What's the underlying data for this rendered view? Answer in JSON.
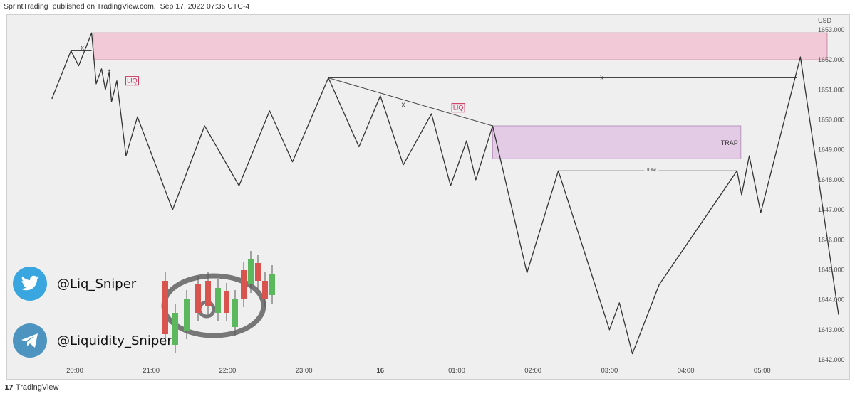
{
  "header": {
    "author": "SprintTrading",
    "published_on": "published on TradingView.com,",
    "date": "Sep 17, 2022 07:35 UTC-4"
  },
  "footer": {
    "logo_text": "TradingView",
    "logo_mark": "17"
  },
  "social": {
    "twitter_handle": "@Liq_Sniper",
    "telegram_handle": "@Liquidity_Sniper",
    "twitter_icon": "twitter-bird-icon",
    "telegram_icon": "telegram-plane-icon"
  },
  "colors": {
    "line": "#333333",
    "pink_zone": "#f2c9d6",
    "purple_zone": "#e3cbe6",
    "liq_label": "#c8234f"
  },
  "chart_data": {
    "type": "line",
    "currency": "USD",
    "ylim": [
      1642,
      1653
    ],
    "yticks": [
      "1642.000",
      "1643.000",
      "1644.000",
      "1645.000",
      "1646.000",
      "1647.000",
      "1648.000",
      "1649.000",
      "1650.000",
      "1651.000",
      "1652.000",
      "1653.000"
    ],
    "xticks": [
      "20:00",
      "21:00",
      "22:00",
      "23:00",
      "16",
      "01:00",
      "02:00",
      "03:00",
      "04:00",
      "05:00"
    ],
    "xtick_hours": [
      20,
      21,
      22,
      23,
      24,
      25,
      26,
      27,
      28,
      29
    ],
    "series": [
      {
        "points": [
          [
            19.7,
            1650.7
          ],
          [
            19.95,
            1652.3
          ],
          [
            20.05,
            1651.8
          ],
          [
            20.22,
            1652.9
          ],
          [
            20.28,
            1651.2
          ],
          [
            20.35,
            1651.7
          ],
          [
            20.4,
            1651.0
          ],
          [
            20.45,
            1651.6
          ],
          [
            20.48,
            1650.6
          ],
          [
            20.55,
            1651.3
          ],
          [
            20.67,
            1648.8
          ],
          [
            20.82,
            1650.1
          ],
          [
            21.28,
            1647.0
          ],
          [
            21.7,
            1649.8
          ],
          [
            22.15,
            1647.8
          ],
          [
            22.55,
            1650.3
          ],
          [
            22.85,
            1648.6
          ],
          [
            23.32,
            1651.4
          ],
          [
            23.72,
            1649.1
          ],
          [
            24.0,
            1650.8
          ],
          [
            24.3,
            1648.5
          ],
          [
            24.67,
            1650.2
          ],
          [
            24.92,
            1647.8
          ],
          [
            25.13,
            1649.3
          ],
          [
            25.25,
            1648.0
          ],
          [
            25.47,
            1649.8
          ],
          [
            25.92,
            1644.9
          ],
          [
            26.33,
            1648.3
          ],
          [
            27.0,
            1643.0
          ],
          [
            27.13,
            1643.9
          ],
          [
            27.3,
            1642.2
          ],
          [
            27.65,
            1644.5
          ],
          [
            28.67,
            1648.3
          ],
          [
            28.73,
            1647.5
          ],
          [
            28.83,
            1648.8
          ],
          [
            28.98,
            1646.9
          ],
          [
            29.5,
            1652.1
          ],
          [
            30.0,
            1643.5
          ]
        ]
      }
    ],
    "zones": [
      {
        "name": "pink-supply-zone",
        "x0": 20.24,
        "x1": 29.85,
        "y0": 1652.0,
        "y1": 1652.9
      },
      {
        "name": "purple-trap-zone",
        "label": "TRAP",
        "x0": 25.47,
        "x1": 28.72,
        "y0": 1648.7,
        "y1": 1649.8
      }
    ],
    "annotations": [
      {
        "text": "LIQ",
        "x": 20.75,
        "y": 1651.3,
        "boxed": true
      },
      {
        "text": "LIQ",
        "x": 25.02,
        "y": 1650.4,
        "boxed": true
      },
      {
        "text": "X",
        "x": 20.1,
        "y": 1652.4
      },
      {
        "text": "X",
        "x": 24.3,
        "y": 1650.5
      },
      {
        "text": "X",
        "x": 26.9,
        "y": 1651.4
      },
      {
        "text": "IDM",
        "x": 27.55,
        "y": 1648.35
      },
      {
        "text": "+",
        "x": 20.45,
        "y": 1651.65
      }
    ],
    "lines": [
      {
        "name": "eq-high-line-left",
        "x0": 19.95,
        "x1": 20.22,
        "y": 1652.3
      },
      {
        "name": "eq-high-line-right",
        "x0": 23.32,
        "x1": 29.45,
        "y": 1651.4
      },
      {
        "name": "trendline-descending",
        "x0": 23.32,
        "y0": 1651.4,
        "x1": 25.47,
        "y1": 1649.8
      },
      {
        "name": "idm-line",
        "x0": 26.33,
        "x1": 28.67,
        "y": 1648.3
      }
    ]
  }
}
